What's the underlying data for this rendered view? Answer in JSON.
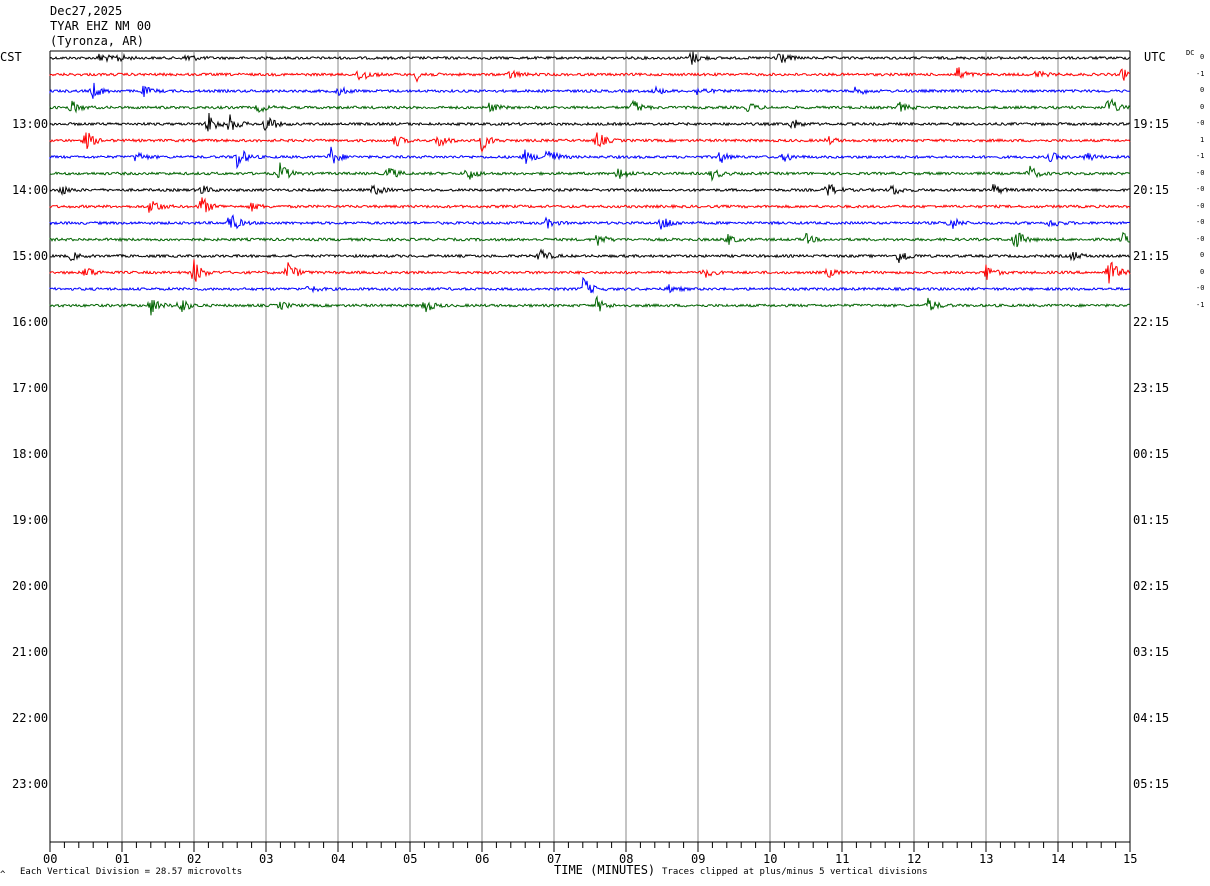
{
  "header": {
    "date": "Dec27,2025",
    "station": "TYAR EHZ NM 00",
    "location": "(Tyronza, AR)"
  },
  "left_zone": "CST",
  "right_zone": "UTC",
  "dc_label": "DC",
  "chart_data": {
    "type": "line",
    "title": "",
    "xlabel": "TIME (MINUTES)",
    "ylabel": "",
    "xlim": [
      0,
      15
    ],
    "x_ticks": [
      "00",
      "01",
      "02",
      "03",
      "04",
      "05",
      "06",
      "07",
      "08",
      "09",
      "10",
      "11",
      "12",
      "13",
      "14",
      "15"
    ],
    "grid": true,
    "row_labels_left": [
      "13:00",
      "14:00",
      "15:00",
      "16:00",
      "17:00",
      "18:00",
      "19:00",
      "20:00",
      "21:00",
      "22:00",
      "23:00"
    ],
    "row_labels_right": [
      "19:15",
      "20:15",
      "21:15",
      "22:15",
      "23:15",
      "00:15",
      "01:15",
      "02:15",
      "03:15",
      "04:15",
      "05:15"
    ],
    "trace_colors": [
      "#000000",
      "#ff0000",
      "#0000ff",
      "#006400"
    ],
    "traces": [
      {
        "color": "#000000",
        "dc": "0",
        "events": [
          [
            0.7,
            0.6
          ],
          [
            0.95,
            0.4
          ],
          [
            1.9,
            0.5
          ],
          [
            8.9,
            0.8
          ],
          [
            10.1,
            1.0
          ]
        ]
      },
      {
        "color": "#ff0000",
        "dc": "-1",
        "events": [
          [
            4.3,
            1.0
          ],
          [
            5.1,
            0.6
          ],
          [
            6.4,
            0.5
          ],
          [
            12.6,
            0.8
          ],
          [
            13.7,
            0.4
          ],
          [
            14.9,
            0.6
          ]
        ]
      },
      {
        "color": "#0000ff",
        "dc": "0",
        "events": [
          [
            0.6,
            0.8
          ],
          [
            1.3,
            0.5
          ],
          [
            4.0,
            0.5
          ],
          [
            8.4,
            0.4
          ],
          [
            9.0,
            0.5
          ],
          [
            11.2,
            0.5
          ]
        ]
      },
      {
        "color": "#006400",
        "dc": "0",
        "events": [
          [
            0.3,
            0.7
          ],
          [
            2.9,
            0.5
          ],
          [
            6.1,
            0.5
          ],
          [
            8.1,
            0.8
          ],
          [
            9.7,
            0.5
          ],
          [
            11.8,
            0.5
          ],
          [
            14.7,
            1.2
          ]
        ]
      },
      {
        "color": "#000000",
        "dc": "-0",
        "events": [
          [
            2.2,
            1.3
          ],
          [
            2.5,
            0.9
          ],
          [
            3.0,
            1.1
          ],
          [
            10.3,
            0.6
          ]
        ]
      },
      {
        "color": "#ff0000",
        "dc": "1",
        "events": [
          [
            0.5,
            1.0
          ],
          [
            4.8,
            0.6
          ],
          [
            5.4,
            0.8
          ],
          [
            6.0,
            1.0
          ],
          [
            7.6,
            0.9
          ],
          [
            10.8,
            0.4
          ]
        ]
      },
      {
        "color": "#0000ff",
        "dc": "-1",
        "events": [
          [
            1.2,
            0.6
          ],
          [
            2.6,
            1.3
          ],
          [
            3.9,
            1.0
          ],
          [
            6.6,
            0.7
          ],
          [
            6.9,
            1.3
          ],
          [
            9.3,
            0.7
          ],
          [
            10.2,
            0.5
          ],
          [
            13.9,
            0.5
          ],
          [
            14.4,
            0.5
          ]
        ]
      },
      {
        "color": "#006400",
        "dc": "-0",
        "events": [
          [
            3.2,
            1.1
          ],
          [
            4.7,
            0.8
          ],
          [
            5.8,
            0.8
          ],
          [
            7.9,
            0.8
          ],
          [
            9.2,
            0.6
          ],
          [
            13.6,
            0.8
          ]
        ]
      },
      {
        "color": "#000000",
        "dc": "-0",
        "events": [
          [
            0.15,
            0.5
          ],
          [
            2.1,
            0.5
          ],
          [
            4.5,
            0.6
          ],
          [
            10.8,
            0.8
          ],
          [
            11.7,
            0.6
          ],
          [
            13.1,
            0.6
          ]
        ]
      },
      {
        "color": "#ff0000",
        "dc": "-0",
        "events": [
          [
            1.4,
            1.0
          ],
          [
            2.1,
            1.1
          ],
          [
            2.8,
            0.4
          ]
        ]
      },
      {
        "color": "#0000ff",
        "dc": "-0",
        "events": [
          [
            2.5,
            1.2
          ],
          [
            6.9,
            0.5
          ],
          [
            8.5,
            1.0
          ],
          [
            12.5,
            0.8
          ],
          [
            13.9,
            0.5
          ]
        ]
      },
      {
        "color": "#006400",
        "dc": "-0",
        "events": [
          [
            7.6,
            0.7
          ],
          [
            9.4,
            0.6
          ],
          [
            10.5,
            0.5
          ],
          [
            13.4,
            1.2
          ],
          [
            14.9,
            0.6
          ]
        ]
      },
      {
        "color": "#000000",
        "dc": "0",
        "events": [
          [
            0.3,
            0.4
          ],
          [
            6.8,
            0.9
          ],
          [
            11.8,
            0.9
          ],
          [
            14.2,
            0.5
          ]
        ]
      },
      {
        "color": "#ff0000",
        "dc": "0",
        "events": [
          [
            0.5,
            0.7
          ],
          [
            2.0,
            1.3
          ],
          [
            3.3,
            1.2
          ],
          [
            9.1,
            0.5
          ],
          [
            10.8,
            0.5
          ],
          [
            13.0,
            0.9
          ],
          [
            14.7,
            1.8
          ]
        ]
      },
      {
        "color": "#0000ff",
        "dc": "-0",
        "events": [
          [
            3.6,
            0.4
          ],
          [
            7.4,
            1.3
          ],
          [
            8.6,
            0.4
          ]
        ]
      },
      {
        "color": "#006400",
        "dc": "-1",
        "events": [
          [
            1.4,
            1.0
          ],
          [
            1.8,
            1.0
          ],
          [
            3.2,
            0.4
          ],
          [
            5.2,
            0.8
          ],
          [
            7.6,
            0.8
          ],
          [
            12.2,
            0.8
          ]
        ]
      }
    ]
  },
  "footer": {
    "left_mark": "^",
    "scale": "Each Vertical Division =   28.57 microvolts",
    "xlabel": "TIME (MINUTES)",
    "clip_note": "Traces clipped at plus/minus 5 vertical divisions"
  }
}
